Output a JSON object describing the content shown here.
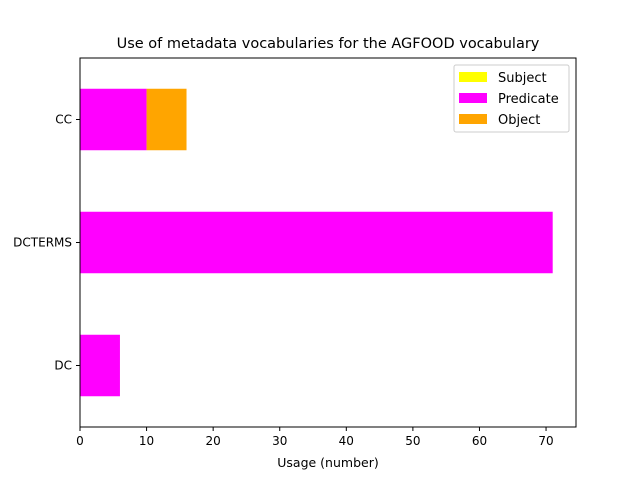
{
  "chart_data": {
    "type": "bar",
    "orientation": "horizontal",
    "stacked": true,
    "title": "Use of metadata vocabularies for the AGFOOD vocabulary",
    "xlabel": "Usage (number)",
    "ylabel": "",
    "categories": [
      "DC",
      "DCTERMS",
      "CC"
    ],
    "series": [
      {
        "name": "Subject",
        "color": "#ffff00",
        "values": [
          0,
          0,
          0
        ]
      },
      {
        "name": "Predicate",
        "color": "#ff00ff",
        "values": [
          6,
          71,
          10
        ]
      },
      {
        "name": "Object",
        "color": "#ffa500",
        "values": [
          0,
          0,
          6
        ]
      }
    ],
    "xlim": [
      0,
      74.5
    ],
    "xticks": [
      0,
      10,
      20,
      30,
      40,
      50,
      60,
      70
    ],
    "grid": false,
    "legend_position": "top-right"
  }
}
